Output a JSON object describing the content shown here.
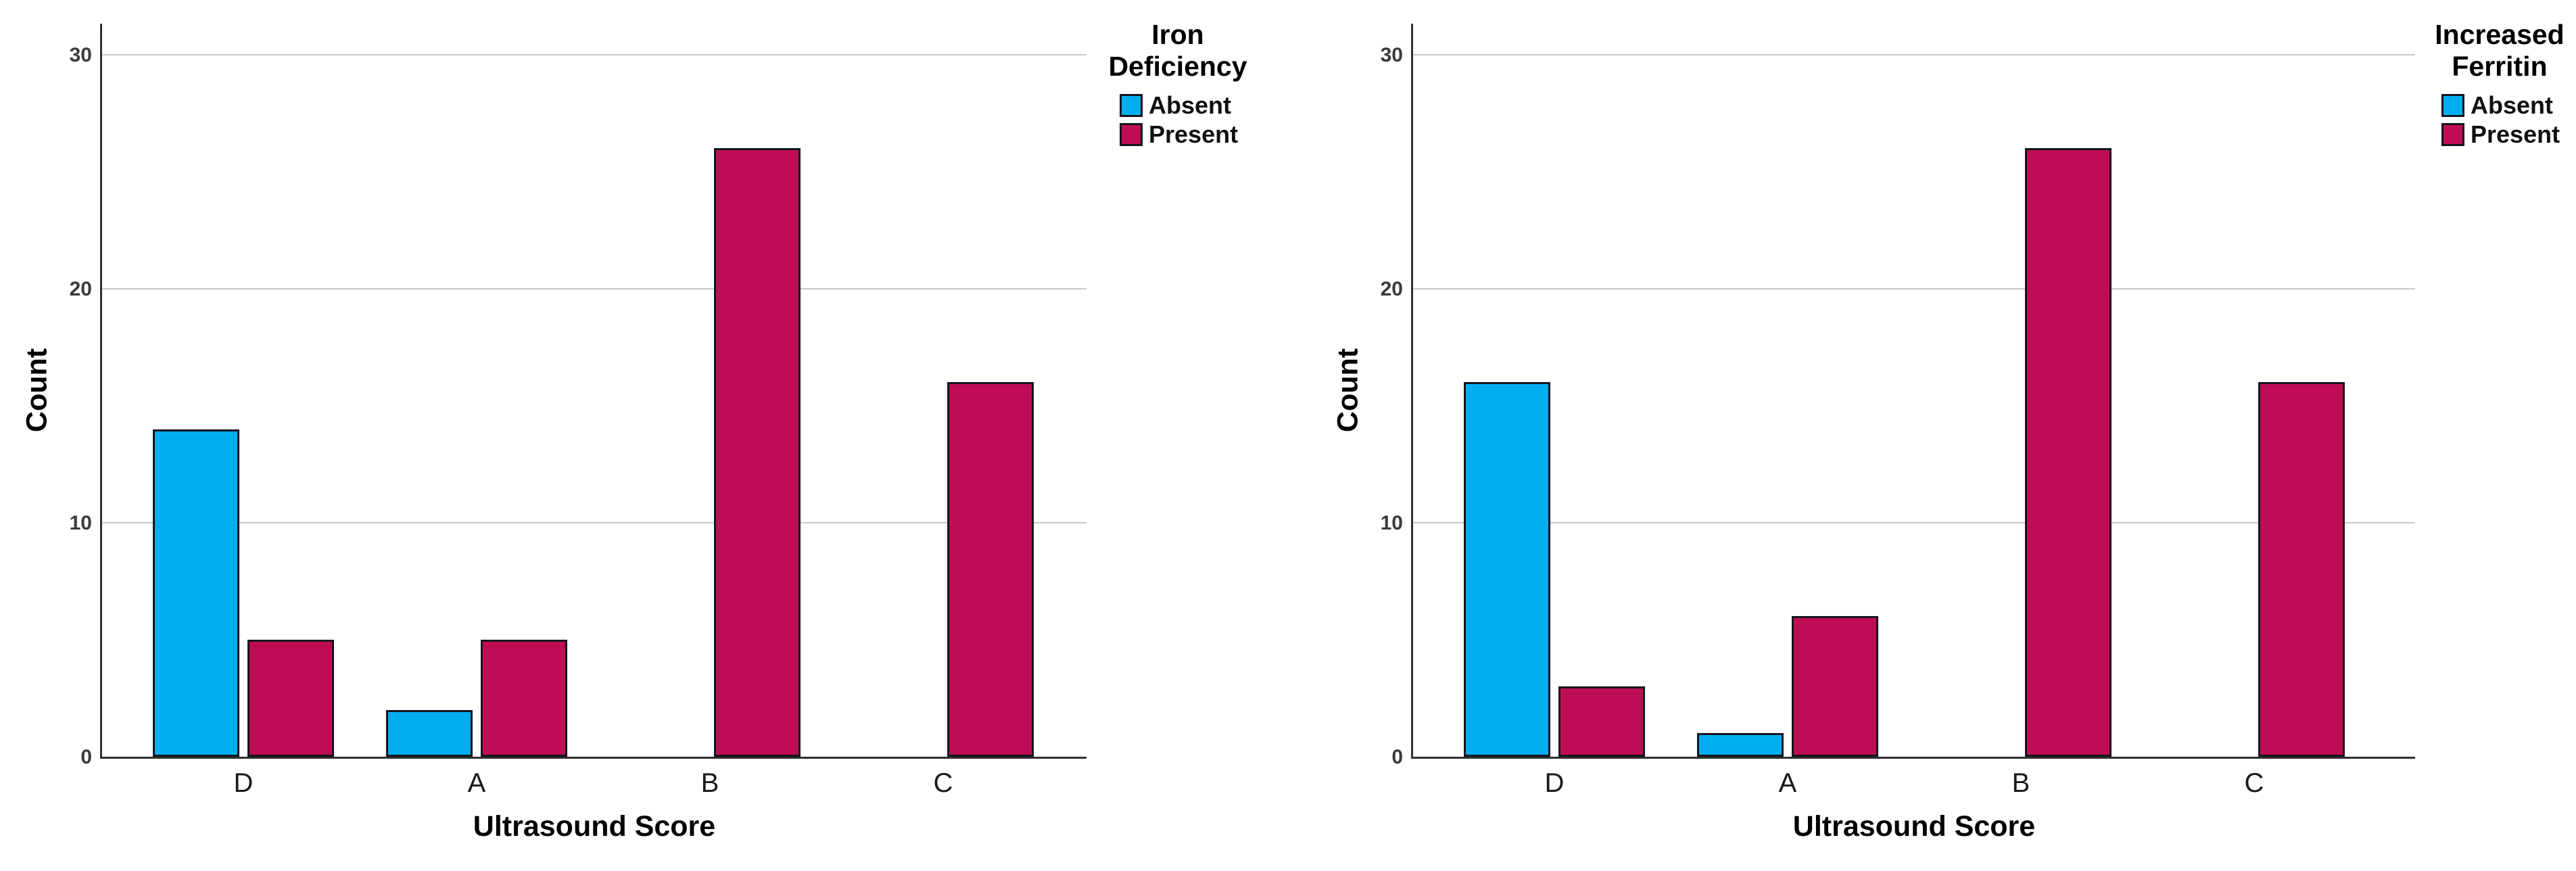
{
  "figure": {
    "background": "#ffffff",
    "accent_colors": {
      "absent": "#00AEF0",
      "present": "#BE0D55"
    },
    "gridline_color": "#c8c8c8",
    "axis_color": "#2f2f2f"
  },
  "chart_data": [
    {
      "type": "bar",
      "title": "",
      "legend_title_lines": [
        "Iron",
        "Deficiency"
      ],
      "xlabel": "Ultrasound Score",
      "ylabel": "Count",
      "categories": [
        "D",
        "A",
        "B",
        "C"
      ],
      "series": [
        {
          "name": "Absent",
          "color": "#00AEF0",
          "values": [
            14,
            2,
            0,
            0
          ]
        },
        {
          "name": "Present",
          "color": "#BE0D55",
          "values": [
            5,
            5,
            26,
            16
          ]
        }
      ],
      "yticks": [
        0,
        10,
        20,
        30
      ],
      "ylim": [
        0,
        31.5
      ],
      "grid": "horizontal",
      "legend_position": "outside-top-right"
    },
    {
      "type": "bar",
      "title": "",
      "legend_title_lines": [
        "Increased",
        "Ferritin"
      ],
      "xlabel": "Ultrasound Score",
      "ylabel": "Count",
      "categories": [
        "D",
        "A",
        "B",
        "C"
      ],
      "series": [
        {
          "name": "Absent",
          "color": "#00AEF0",
          "values": [
            16,
            1,
            0,
            0
          ]
        },
        {
          "name": "Present",
          "color": "#BE0D55",
          "values": [
            3,
            6,
            26,
            16
          ]
        }
      ],
      "yticks": [
        0,
        10,
        20,
        30
      ],
      "ylim": [
        0,
        31.5
      ],
      "grid": "horizontal",
      "legend_position": "outside-top-right"
    }
  ]
}
